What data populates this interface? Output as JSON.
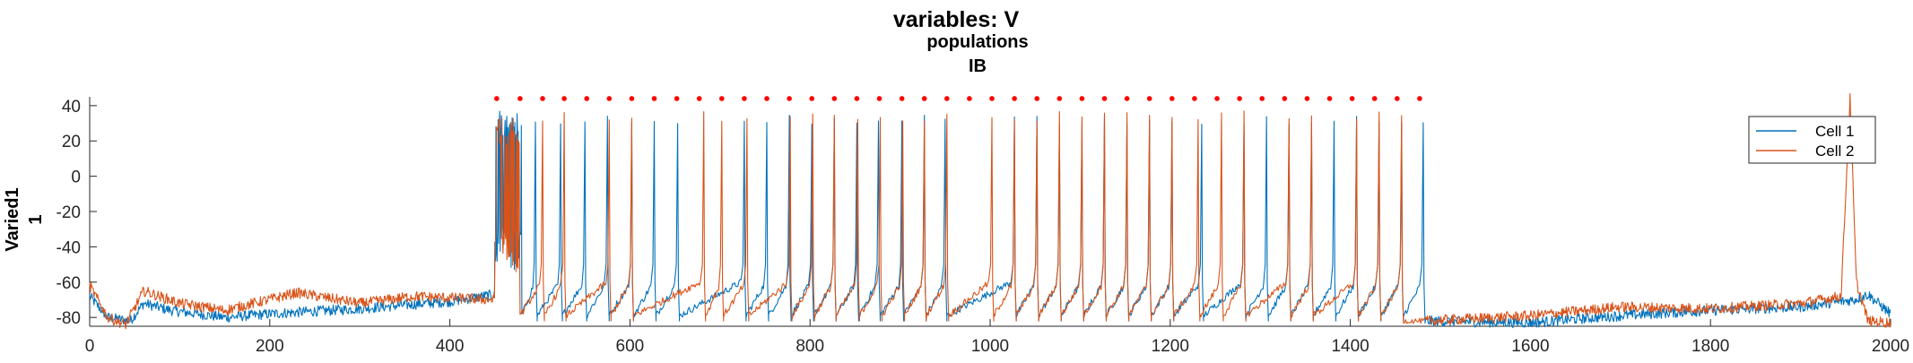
{
  "chart_data": {
    "type": "line",
    "title": "variables: V",
    "subtitle_lines": [
      "populations",
      "IB"
    ],
    "ylabel_lines": [
      "Varied1",
      "1"
    ],
    "xlabel": "",
    "xlim": [
      0,
      2000
    ],
    "ylim": [
      -85,
      45
    ],
    "xticks": [
      0,
      200,
      400,
      600,
      800,
      1000,
      1200,
      1400,
      1600,
      1800,
      2000
    ],
    "yticks": [
      -80,
      -60,
      -40,
      -20,
      0,
      20,
      40
    ],
    "grid": false,
    "legend": {
      "placement": "top-right"
    },
    "series": [
      {
        "name": "Cell 1",
        "color": "#0072BD",
        "baseline_segments": [
          {
            "t": 0,
            "v": -68
          },
          {
            "t": 20,
            "v": -80
          },
          {
            "t": 45,
            "v": -82
          },
          {
            "t": 60,
            "v": -72
          },
          {
            "t": 90,
            "v": -76
          },
          {
            "t": 150,
            "v": -80
          },
          {
            "t": 200,
            "v": -78
          },
          {
            "t": 300,
            "v": -75
          },
          {
            "t": 400,
            "v": -71
          },
          {
            "t": 449,
            "v": -67
          }
        ],
        "burst": {
          "start": 450,
          "end": 480,
          "low": -55,
          "high": 37
        },
        "spike_times": [
          495,
          523,
          550,
          575,
          602,
          627,
          653,
          727,
          752,
          777,
          802,
          827,
          852,
          876,
          902,
          927,
          950,
          1027,
          1052,
          1077,
          1102,
          1127,
          1152,
          1177,
          1202,
          1235,
          1282,
          1307,
          1332,
          1357,
          1382,
          1407,
          1432,
          1457,
          1481
        ],
        "spike_peak": 35,
        "inter_spike_min": -84,
        "tail_segments": [
          {
            "t": 1483,
            "v": -82
          },
          {
            "t": 1600,
            "v": -83
          },
          {
            "t": 1700,
            "v": -79
          },
          {
            "t": 1800,
            "v": -76
          },
          {
            "t": 1900,
            "v": -74
          },
          {
            "t": 1960,
            "v": -70
          },
          {
            "t": 1975,
            "v": -67
          },
          {
            "t": 2000,
            "v": -78
          }
        ]
      },
      {
        "name": "Cell 2",
        "color": "#D95319",
        "baseline_segments": [
          {
            "t": 0,
            "v": -62
          },
          {
            "t": 20,
            "v": -80
          },
          {
            "t": 40,
            "v": -84
          },
          {
            "t": 60,
            "v": -65
          },
          {
            "t": 100,
            "v": -72
          },
          {
            "t": 150,
            "v": -76
          },
          {
            "t": 230,
            "v": -66
          },
          {
            "t": 300,
            "v": -72
          },
          {
            "t": 360,
            "v": -68
          },
          {
            "t": 449,
            "v": -70
          }
        ],
        "burst": {
          "start": 450,
          "end": 478,
          "low": -55,
          "high": 33
        },
        "spike_times": [
          503,
          527,
          577,
          602,
          682,
          702,
          730,
          778,
          803,
          827,
          853,
          878,
          903,
          927,
          952,
          1002,
          1027,
          1052,
          1077,
          1102,
          1127,
          1152,
          1177,
          1202,
          1231,
          1257,
          1282,
          1332,
          1357,
          1407,
          1432,
          1457
        ],
        "spike_peak": 37,
        "inter_spike_min": -84,
        "tail_segments": [
          {
            "t": 1483,
            "v": -82
          },
          {
            "t": 1600,
            "v": -79
          },
          {
            "t": 1700,
            "v": -74
          },
          {
            "t": 1800,
            "v": -75
          },
          {
            "t": 1900,
            "v": -72
          },
          {
            "t": 1945,
            "v": -68
          },
          {
            "t": 1955,
            "v": 44
          },
          {
            "t": 1962,
            "v": -60
          },
          {
            "t": 1975,
            "v": -82
          },
          {
            "t": 2000,
            "v": -83
          }
        ]
      }
    ],
    "event_markers": {
      "color": "#FF0000",
      "v": 44,
      "times": [
        452,
        478,
        503,
        527,
        552,
        577,
        602,
        627,
        652,
        677,
        702,
        727,
        752,
        777,
        802,
        827,
        852,
        877,
        902,
        927,
        952,
        977,
        1002,
        1027,
        1052,
        1077,
        1102,
        1127,
        1152,
        1177,
        1202,
        1227,
        1252,
        1277,
        1302,
        1327,
        1352,
        1377,
        1402,
        1427,
        1452,
        1477
      ]
    }
  }
}
